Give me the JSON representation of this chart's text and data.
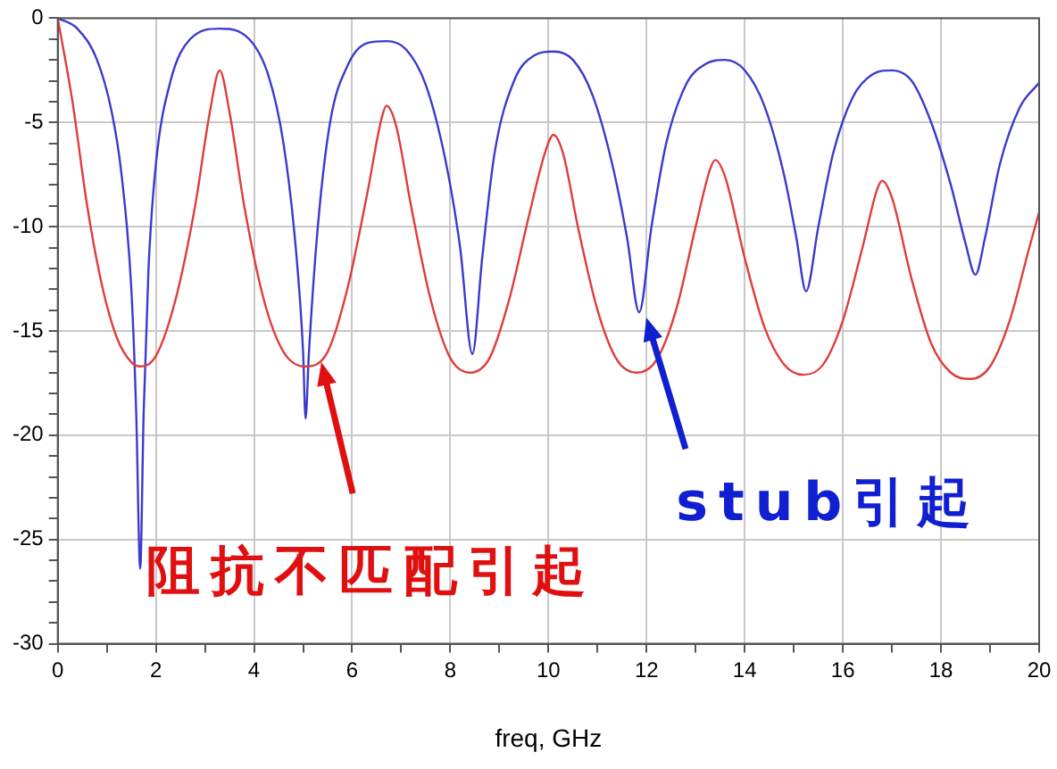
{
  "chart_data": {
    "type": "line",
    "xlabel": "freq, GHz",
    "xlim": [
      0,
      20
    ],
    "ylim": [
      -30,
      0
    ],
    "xticks": [
      0,
      {
        "value": 1,
        "label": null
      },
      2,
      {
        "value": 3,
        "label": null
      },
      4,
      {
        "value": 5,
        "label": null
      },
      6,
      {
        "value": 7,
        "label": null
      },
      8,
      {
        "value": 9,
        "label": null
      },
      10,
      {
        "value": 11,
        "label": null
      },
      12,
      {
        "value": 13,
        "label": null
      },
      14,
      {
        "value": 15,
        "label": null
      },
      16,
      {
        "value": 17,
        "label": null
      },
      18,
      {
        "value": 19,
        "label": null
      },
      20
    ],
    "yticks": [
      -30,
      {
        "value": -29,
        "label": null
      },
      {
        "value": -28,
        "label": null
      },
      {
        "value": -27,
        "label": null
      },
      {
        "value": -26,
        "label": null
      },
      -25,
      {
        "value": -24,
        "label": null
      },
      {
        "value": -23,
        "label": null
      },
      {
        "value": -22,
        "label": null
      },
      {
        "value": -21,
        "label": null
      },
      -20,
      {
        "value": -19,
        "label": null
      },
      {
        "value": -18,
        "label": null
      },
      {
        "value": -17,
        "label": null
      },
      {
        "value": -16,
        "label": null
      },
      -15,
      {
        "value": -14,
        "label": null
      },
      {
        "value": -13,
        "label": null
      },
      {
        "value": -12,
        "label": null
      },
      {
        "value": -11,
        "label": null
      },
      -10,
      {
        "value": -9,
        "label": null
      },
      {
        "value": -8,
        "label": null
      },
      {
        "value": -7,
        "label": null
      },
      {
        "value": -6,
        "label": null
      },
      -5,
      {
        "value": -4,
        "label": null
      },
      {
        "value": -3,
        "label": null
      },
      {
        "value": -2,
        "label": null
      },
      {
        "value": -1,
        "label": null
      },
      0
    ],
    "grid": true,
    "legend": false,
    "marker": "none",
    "line_style": "solid",
    "series": [
      {
        "color": "#e03c3c",
        "x": [
          0,
          0.3,
          0.6,
          0.9,
          1.2,
          1.5,
          1.7,
          2.0,
          2.4,
          2.8,
          3.1,
          3.3,
          3.5,
          3.8,
          4.2,
          4.6,
          5.05,
          5.5,
          5.9,
          6.3,
          6.6,
          6.7,
          6.9,
          7.2,
          7.6,
          8.0,
          8.4,
          8.8,
          9.2,
          9.6,
          9.95,
          10.1,
          10.3,
          10.6,
          11.0,
          11.4,
          11.8,
          12.2,
          12.6,
          13.0,
          13.3,
          13.4,
          13.6,
          14.0,
          14.4,
          14.8,
          15.2,
          15.6,
          16.0,
          16.4,
          16.7,
          16.8,
          17.0,
          17.4,
          17.8,
          18.2,
          18.6,
          19.0,
          19.4,
          19.8,
          20
        ],
        "values": [
          0,
          -4,
          -9,
          -12.8,
          -15.3,
          -16.5,
          -16.7,
          -16.2,
          -13.5,
          -9,
          -4.5,
          -2.5,
          -4.5,
          -9,
          -13.5,
          -16,
          -16.7,
          -16,
          -13,
          -8.5,
          -4.8,
          -4.2,
          -5.2,
          -9,
          -13.5,
          -16.3,
          -17,
          -16.3,
          -13.5,
          -9.5,
          -6.3,
          -5.6,
          -6.5,
          -10,
          -14,
          -16.4,
          -17,
          -16.4,
          -14,
          -10,
          -7.2,
          -6.8,
          -7.6,
          -11.5,
          -14.8,
          -16.6,
          -17.1,
          -16.6,
          -14.5,
          -11,
          -8.2,
          -7.8,
          -8.6,
          -12.5,
          -15.6,
          -17,
          -17.3,
          -16.7,
          -14.5,
          -11,
          -9.3
        ]
      },
      {
        "color": "#3a3acf",
        "x": [
          0,
          0.4,
          0.8,
          1.1,
          1.3,
          1.5,
          1.6,
          1.68,
          1.75,
          1.85,
          2.0,
          2.3,
          2.7,
          3.3,
          3.9,
          4.3,
          4.6,
          4.85,
          5.0,
          5.05,
          5.12,
          5.3,
          5.55,
          5.9,
          6.3,
          6.7,
          7.1,
          7.5,
          7.9,
          8.2,
          8.45,
          8.65,
          8.9,
          9.3,
          9.7,
          10.1,
          10.5,
          10.9,
          11.3,
          11.6,
          11.85,
          12.1,
          12.4,
          12.8,
          13.2,
          13.6,
          14.0,
          14.4,
          14.8,
          15.05,
          15.25,
          15.5,
          15.8,
          16.2,
          16.6,
          17.0,
          17.4,
          17.8,
          18.2,
          18.5,
          18.7,
          18.9,
          19.2,
          19.6,
          20
        ],
        "values": [
          0,
          -0.5,
          -2,
          -4.5,
          -7.5,
          -13,
          -19,
          -26.4,
          -19,
          -12,
          -7,
          -3,
          -1,
          -0.5,
          -1,
          -2.8,
          -6,
          -11,
          -16,
          -19.2,
          -16,
          -10,
          -5,
          -2.3,
          -1.2,
          -1.1,
          -1.5,
          -3.2,
          -6.8,
          -11,
          -16.1,
          -11.5,
          -6.5,
          -3,
          -1.8,
          -1.6,
          -2,
          -3.7,
          -7,
          -10.5,
          -14.1,
          -10,
          -6,
          -3.2,
          -2.2,
          -2,
          -2.5,
          -4.2,
          -7.5,
          -10.5,
          -13.1,
          -10,
          -6.5,
          -3.8,
          -2.7,
          -2.5,
          -3,
          -5,
          -8,
          -10.8,
          -12.3,
          -10.5,
          -7,
          -4.3,
          -3.1
        ]
      }
    ],
    "annotations": [
      "阻抗不匹配引起",
      "stub引起"
    ]
  }
}
